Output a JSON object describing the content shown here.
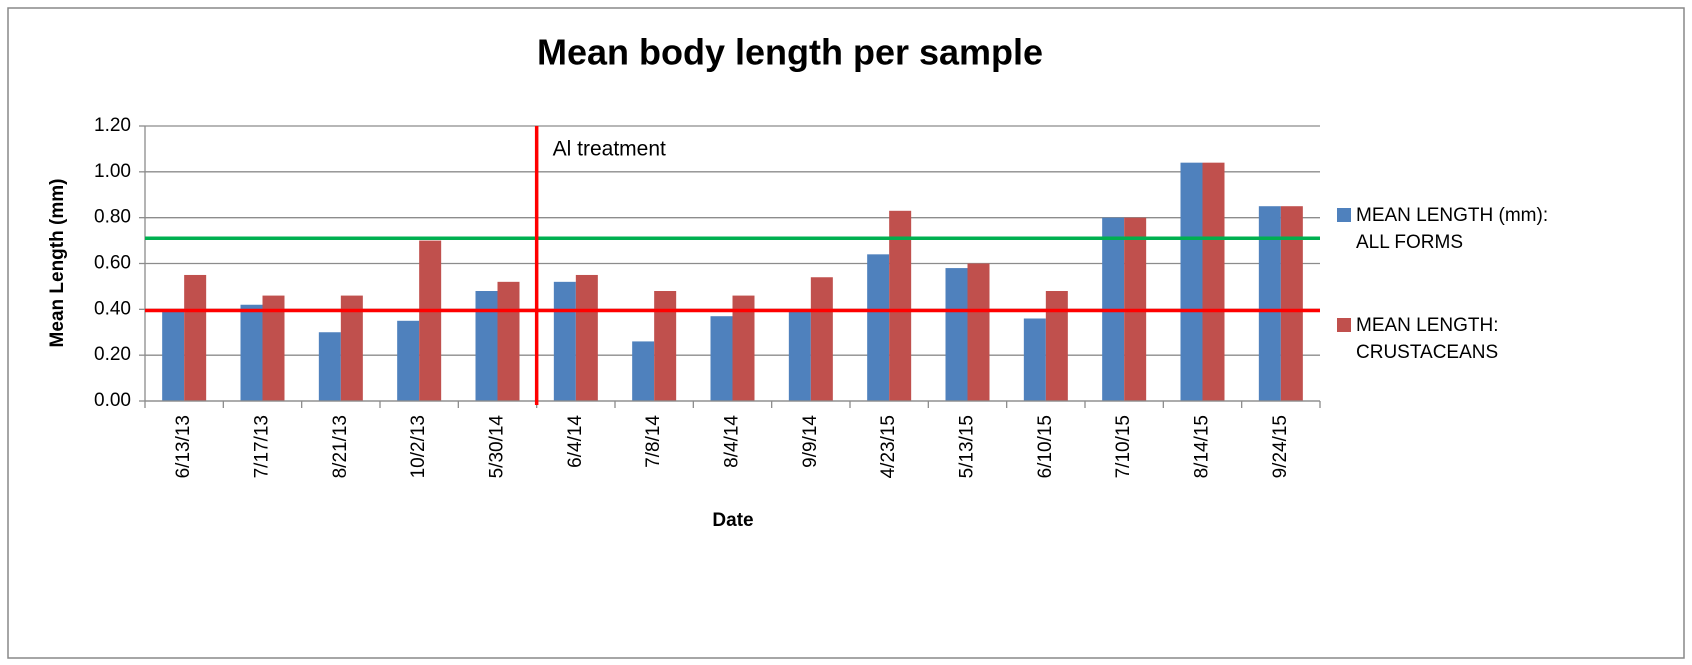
{
  "chart_data": {
    "type": "bar",
    "title": "Mean body length per sample",
    "x_label": "Date",
    "y_label": "Mean Length (mm)",
    "categories": [
      "6/13/13",
      "7/17/13",
      "8/21/13",
      "10/2/13",
      "5/30/14",
      "6/4/14",
      "7/8/14",
      "8/4/14",
      "9/9/14",
      "4/23/15",
      "5/13/15",
      "6/10/15",
      "7/10/15",
      "8/14/15",
      "9/24/15"
    ],
    "series": [
      {
        "name": "MEAN LENGTH (mm): ALL FORMS",
        "color": "#4f81bd",
        "values": [
          0.4,
          0.42,
          0.3,
          0.35,
          0.48,
          0.52,
          0.26,
          0.37,
          0.4,
          0.64,
          0.58,
          0.36,
          0.8,
          1.04,
          0.85
        ]
      },
      {
        "name": "MEAN LENGTH: CRUSTACEANS",
        "color": "#c0504d",
        "values": [
          0.55,
          0.46,
          0.46,
          0.7,
          0.52,
          0.55,
          0.48,
          0.46,
          0.54,
          0.83,
          0.6,
          0.48,
          0.8,
          1.04,
          0.85
        ]
      }
    ],
    "ylim": [
      0,
      1.2
    ],
    "yticks": [
      {
        "value": 0,
        "label": "0.00"
      },
      {
        "value": 0.2,
        "label": "0.20"
      },
      {
        "value": 0.4,
        "label": "0.40"
      },
      {
        "value": 0.6,
        "label": "0.60"
      },
      {
        "value": 0.8,
        "label": "0.80"
      },
      {
        "value": 1.0,
        "label": "1.00"
      },
      {
        "value": 1.2,
        "label": "1.20"
      }
    ],
    "grid": true,
    "legend": "right",
    "reference_lines": [
      {
        "value": 0.71,
        "color": "#00b050"
      },
      {
        "value": 0.395,
        "color": "#ff0000"
      }
    ],
    "annotation": {
      "text": "Al treatment",
      "after": "5/30/14",
      "color": "#ff0000"
    }
  }
}
